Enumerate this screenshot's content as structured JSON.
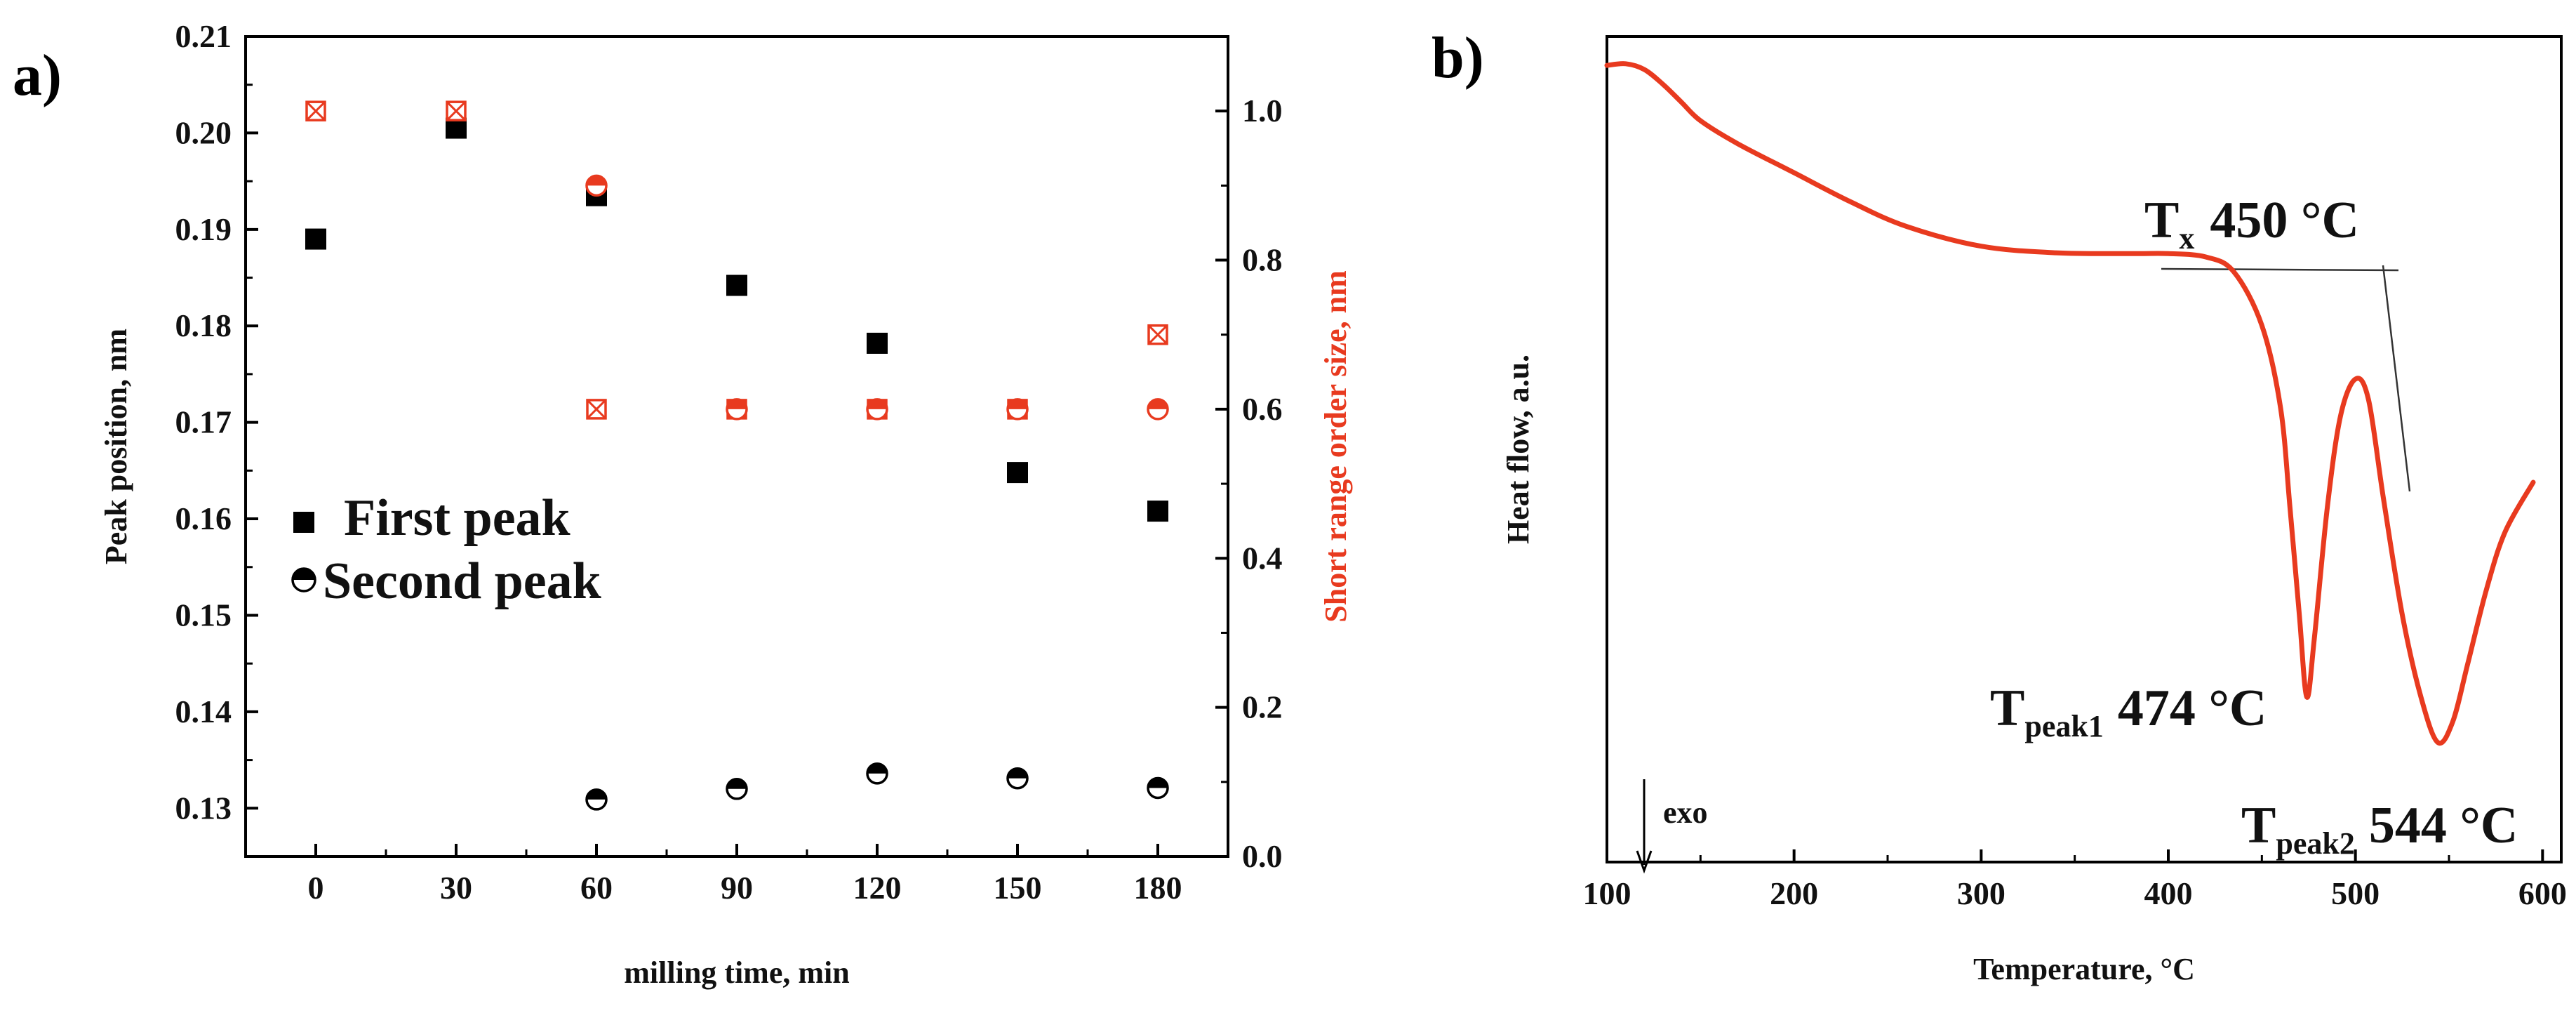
{
  "panels": {
    "a_label": "a)",
    "b_label": "b)"
  },
  "chart_data": [
    {
      "type": "scatter",
      "panel": "a",
      "title": "",
      "xlabel": "milling time, min",
      "ylabel": "Peak position, nm",
      "y2label": "Short range order size, nm",
      "xlim": [
        -15,
        195
      ],
      "ylim": [
        0.125,
        0.21
      ],
      "y2lim": [
        0.0,
        1.1
      ],
      "x_ticks": [
        "0",
        "30",
        "60",
        "90",
        "120",
        "150",
        "180"
      ],
      "y_ticks": [
        "0.13",
        "0.14",
        "0.15",
        "0.16",
        "0.17",
        "0.18",
        "0.19",
        "0.20",
        "0.21"
      ],
      "y2_ticks": [
        "0.0",
        "0.2",
        "0.4",
        "0.6",
        "0.8",
        "1.0"
      ],
      "legend": {
        "placement": "left-middle",
        "first": "First peak",
        "second": "Second peak"
      },
      "series": [
        {
          "name": "First peak",
          "axis": "left",
          "marker": "square",
          "color": "#000000",
          "x": [
            0,
            30,
            60,
            90,
            120,
            150,
            180
          ],
          "values": [
            0.189,
            0.2005,
            0.1935,
            0.1842,
            0.1782,
            0.1648,
            0.1608
          ]
        },
        {
          "name": "Second peak",
          "axis": "left",
          "marker": "half-circle",
          "color": "#000000",
          "x": [
            60,
            90,
            120,
            150,
            180
          ],
          "values": [
            0.1309,
            0.132,
            0.1336,
            0.1331,
            0.1321
          ]
        },
        {
          "name": "Short range order size (first peak)",
          "axis": "right",
          "marker": "crossed-square",
          "color": "#e83a1f",
          "x": [
            0,
            30,
            60,
            90,
            120,
            150,
            180
          ],
          "values": [
            1.0,
            1.0,
            0.6,
            0.6,
            0.6,
            0.6,
            0.7
          ]
        },
        {
          "name": "Short range order size (second peak)",
          "axis": "right",
          "marker": "half-circle",
          "color": "#e83a1f",
          "x": [
            60,
            90,
            120,
            150,
            180
          ],
          "values": [
            0.9,
            0.6,
            0.6,
            0.6,
            0.6
          ]
        }
      ]
    },
    {
      "type": "line",
      "panel": "b",
      "title": "",
      "xlabel": "Temperature, °C",
      "ylabel": "Heat flow, a.u.",
      "xlim": [
        100,
        610
      ],
      "ylim": [
        0,
        1
      ],
      "x_ticks": [
        "100",
        "200",
        "300",
        "400",
        "500",
        "600"
      ],
      "color": "#e83a1f",
      "x": [
        100,
        110,
        120,
        130,
        140,
        150,
        170,
        200,
        230,
        260,
        300,
        340,
        380,
        400,
        420,
        435,
        450,
        460,
        465,
        470,
        474,
        478,
        485,
        492,
        500,
        507,
        515,
        525,
        535,
        544,
        552,
        560,
        570,
        580,
        595
      ],
      "values": [
        0.965,
        0.967,
        0.96,
        0.942,
        0.92,
        0.898,
        0.87,
        0.835,
        0.8,
        0.77,
        0.746,
        0.738,
        0.737,
        0.737,
        0.733,
        0.715,
        0.65,
        0.55,
        0.43,
        0.3,
        0.2,
        0.27,
        0.43,
        0.54,
        0.585,
        0.56,
        0.44,
        0.3,
        0.2,
        0.145,
        0.17,
        0.24,
        0.33,
        0.4,
        0.46
      ],
      "annotations": [
        {
          "main": "T",
          "sub": "x",
          "value": "450 °C"
        },
        {
          "main": "T",
          "sub": "peak1",
          "value": "474 °C"
        },
        {
          "main": "T",
          "sub": "peak2",
          "value": "544 °C"
        }
      ],
      "exo_label": "exo"
    }
  ]
}
